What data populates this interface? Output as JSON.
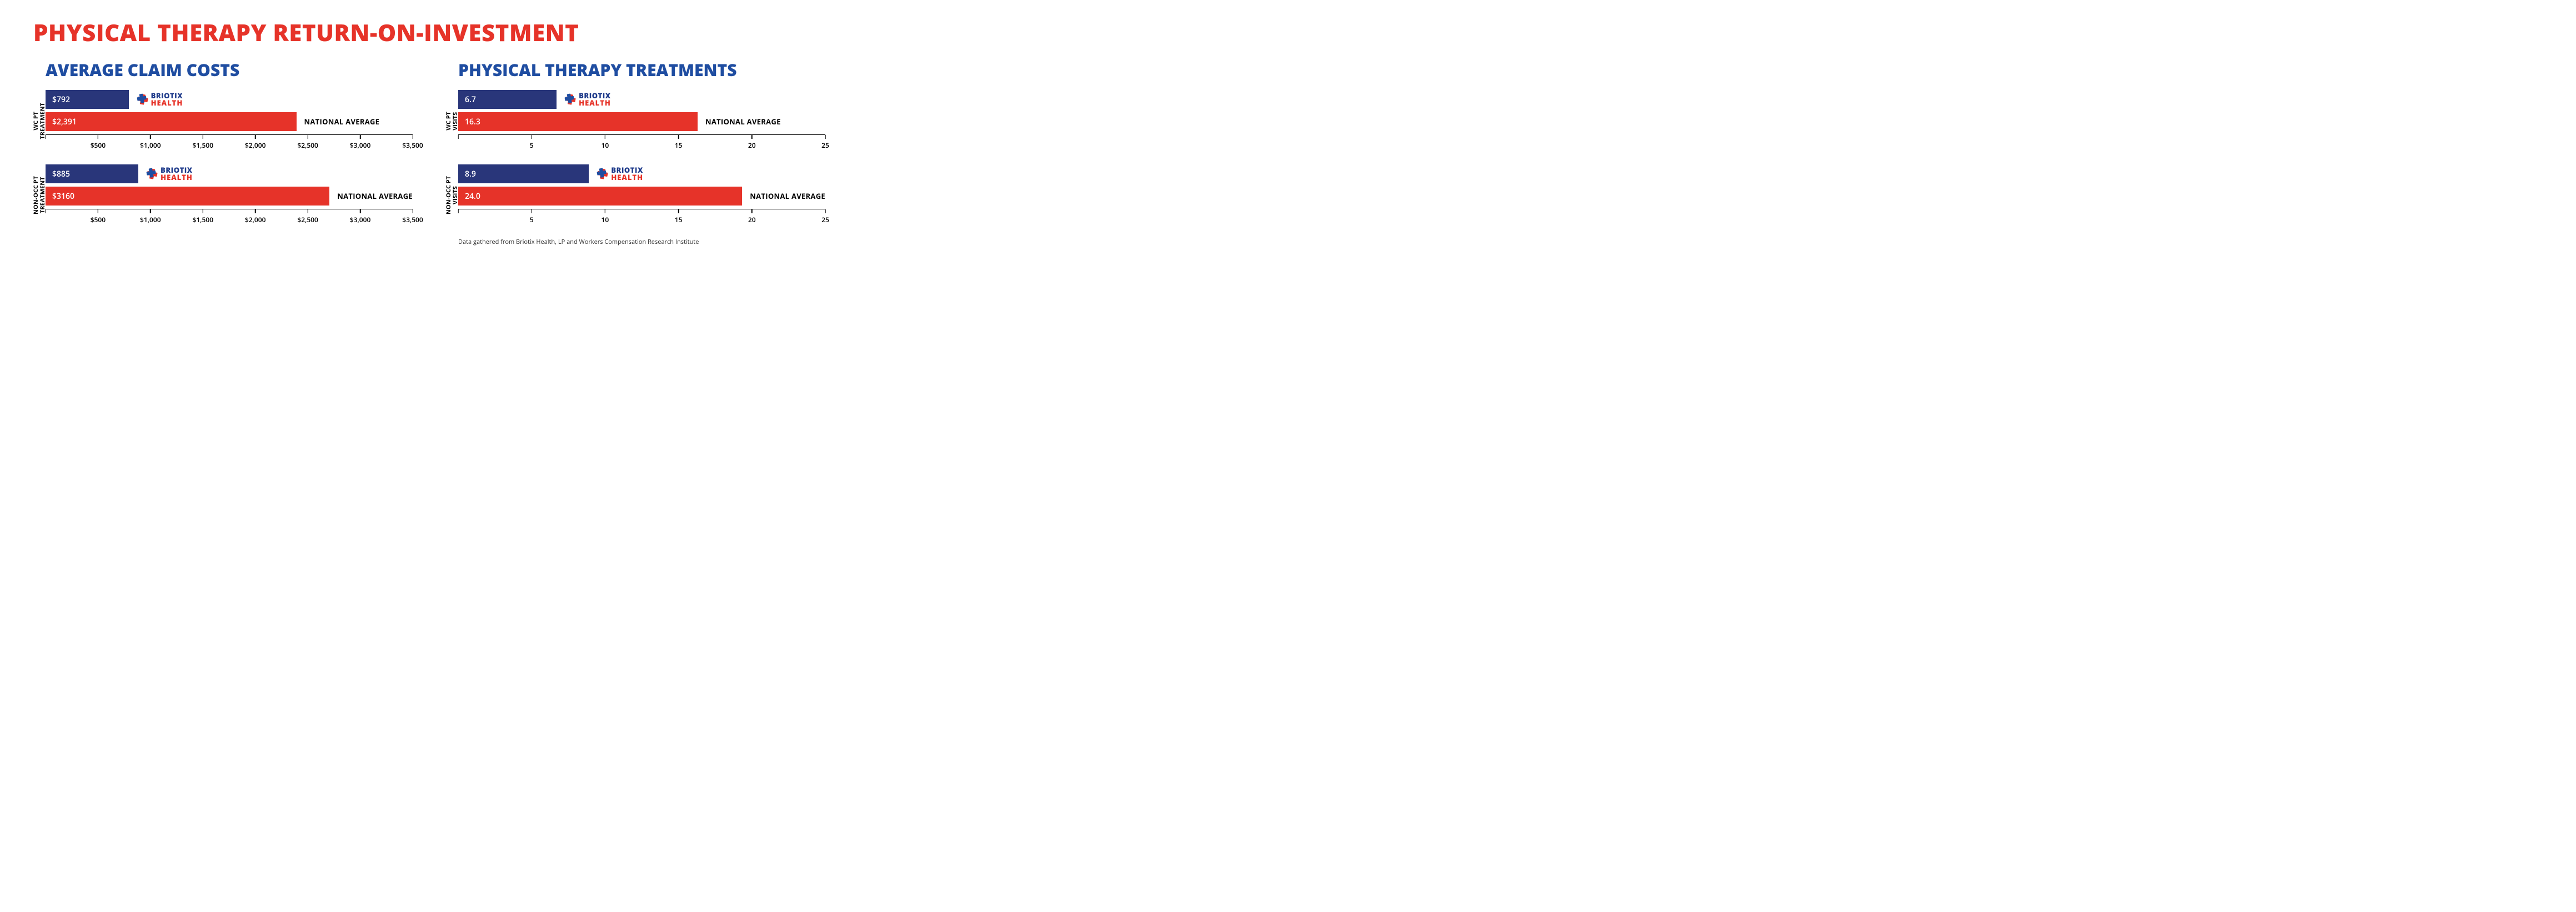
{
  "colors": {
    "red": "#e63329",
    "navy": "#29367a",
    "blue_title": "#1f4da1",
    "text": "#111111",
    "bar_text": "#ffffff",
    "axis": "#000000",
    "bg": "#ffffff"
  },
  "title": "PHYSICAL THERAPY RETURN-ON-INVESTMENT",
  "columns": [
    {
      "subtitle": "AVERAGE CLAIM COSTS",
      "axis": {
        "min": 0,
        "max": 3500,
        "step": 500,
        "format": "currency",
        "skip_zero": true
      },
      "groups": [
        {
          "ylabel": "WC PT\nTREATMENT",
          "briotix": {
            "value": 792,
            "display": "$792"
          },
          "national": {
            "value": 2391,
            "display": "$2,391"
          }
        },
        {
          "ylabel": "NON-OCC PT\nTREATMENT",
          "briotix": {
            "value": 885,
            "display": "$885"
          },
          "national": {
            "value": 3160,
            "display": "$3160"
          }
        }
      ]
    },
    {
      "subtitle": "PHYSICAL THERAPY TREATMENTS",
      "axis": {
        "min": 0,
        "max": 25,
        "step": 5,
        "format": "plain",
        "skip_zero": true
      },
      "groups": [
        {
          "ylabel": "WC PT\nVISITS",
          "briotix": {
            "value": 6.7,
            "display": "6.7"
          },
          "national": {
            "value": 16.3,
            "display": "16.3"
          }
        },
        {
          "ylabel": "NON-OCC PT\nVISITS",
          "briotix": {
            "value": 8.9,
            "display": "8.9"
          },
          "national": {
            "value": 24.0,
            "display": "24.0"
          }
        }
      ]
    }
  ],
  "labels": {
    "national": "NATIONAL AVERAGE",
    "logo_l1": "BRIOTIX",
    "logo_l2": "HEALTH"
  },
  "footnote": "Data gathered from Briotix Health, LP and Workers Compensation Research Institute"
}
